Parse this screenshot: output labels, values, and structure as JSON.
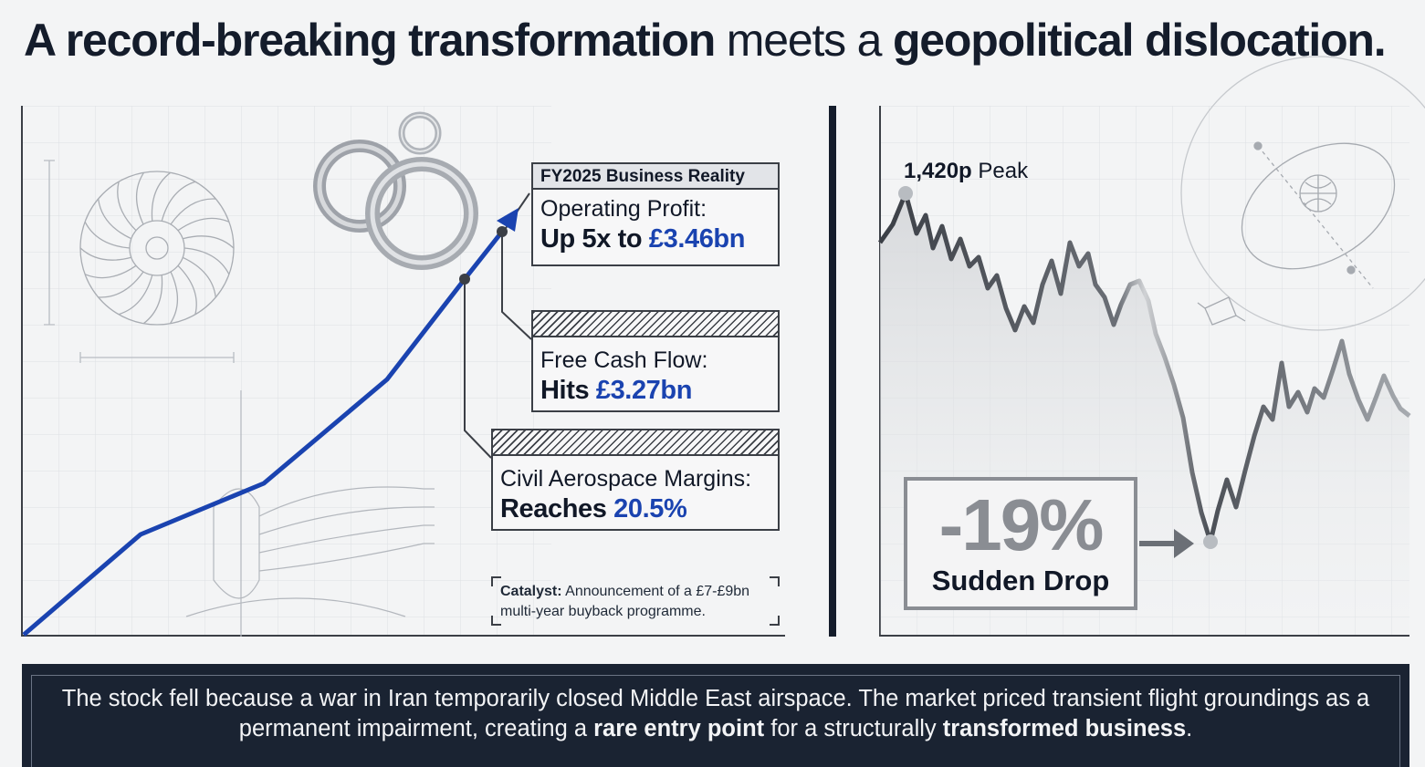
{
  "title": {
    "part1": "A record-breaking transformation",
    "part2": " meets a ",
    "part3": "geopolitical dislocation."
  },
  "left_panel": {
    "cards": [
      {
        "header": "FY2025 Business Reality",
        "label": "Operating Profit:",
        "value_prefix": "Up 5x to ",
        "value_accent": "£3.46bn"
      },
      {
        "header": "",
        "label": "Free Cash Flow:",
        "value_prefix": "Hits ",
        "value_accent": "£3.27bn"
      },
      {
        "header": "",
        "label": "Civil Aerospace Margins:",
        "value_prefix": "Reaches ",
        "value_accent": "20.5%"
      }
    ],
    "catalyst": {
      "label": "Catalyst:",
      "text": " Announcement of a £7-£9bn multi-year buyback programme."
    }
  },
  "right_panel": {
    "peak_value": "1,420p",
    "peak_word": " Peak",
    "drop_pct": "-19%",
    "drop_label": "Sudden Drop"
  },
  "footer": {
    "t1": "The stock fell because a war in Iran temporarily closed Middle East airspace. The market priced transient flight groundings as a permanent impairment, creating a ",
    "b1": "rare entry point",
    "t2": " for a structurally ",
    "b2": "transformed business",
    "t3": "."
  },
  "colors": {
    "accent_blue": "#1a43b0",
    "navy": "#1a2332",
    "grey_mark": "#8a8d93"
  }
}
